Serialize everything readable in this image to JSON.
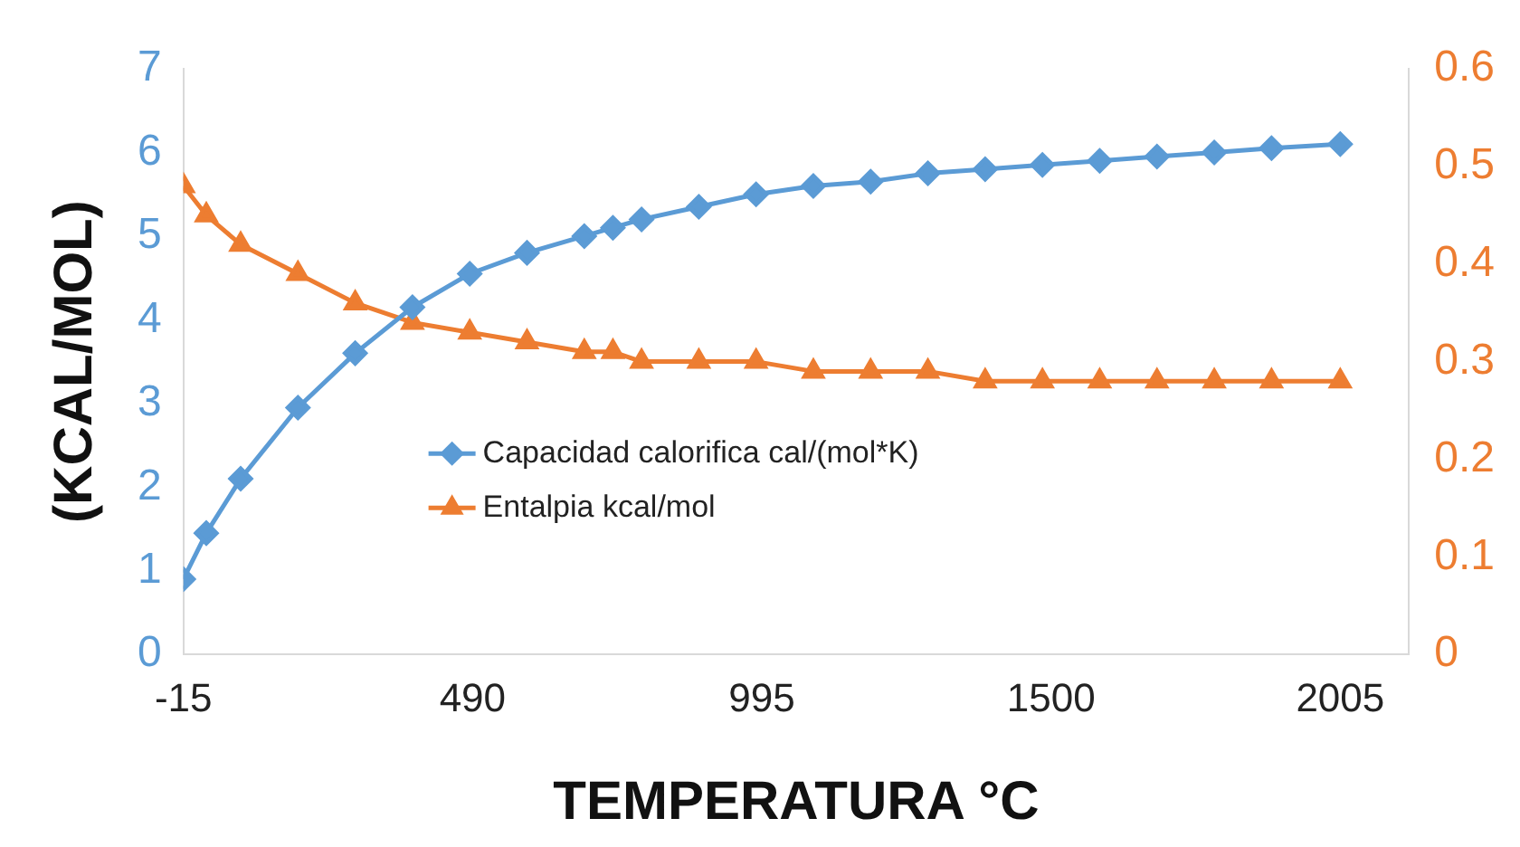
{
  "chart_data": {
    "type": "line",
    "xlabel": "TEMPERATURA °C",
    "ylabel": "(KCAL/MOL)",
    "x": [
      -15,
      25,
      85,
      185,
      285,
      385,
      485,
      585,
      685,
      735,
      785,
      885,
      985,
      1085,
      1185,
      1285,
      1385,
      1485,
      1585,
      1685,
      1785,
      1885,
      2005
    ],
    "series": [
      {
        "name": "Capacidad calorifica cal/(mol*K)",
        "color": "#5b9bd5",
        "marker": "diamond",
        "values": [
          0.9,
          1.45,
          2.1,
          2.95,
          3.6,
          4.15,
          4.55,
          4.8,
          5.0,
          5.1,
          5.2,
          5.35,
          5.5,
          5.6,
          5.65,
          5.75,
          5.8,
          5.85,
          5.9,
          5.95,
          6.0,
          6.05,
          6.1
        ]
      },
      {
        "name": "Entalpia kcal/mol",
        "color": "#ed7d31",
        "marker": "triangle",
        "axis": "y2",
        "values": [
          0.48,
          0.45,
          0.42,
          0.39,
          0.36,
          0.34,
          0.33,
          0.32,
          0.31,
          0.31,
          0.3,
          0.3,
          0.3,
          0.29,
          0.29,
          0.29,
          0.28,
          0.28,
          0.28,
          0.28,
          0.28,
          0.28,
          0.28
        ]
      }
    ],
    "xlim": [
      -15,
      2125
    ],
    "xticks": [
      -15,
      490,
      995,
      1500,
      2005
    ],
    "ylim": [
      0,
      7
    ],
    "yticks": [
      0,
      1,
      2,
      3,
      4,
      5,
      6,
      7
    ],
    "y2lim": [
      0,
      0.6
    ],
    "y2ticks": [
      0,
      0.1,
      0.2,
      0.3,
      0.4,
      0.5,
      0.6
    ],
    "grid": false,
    "legend": "center",
    "line_style": "solid"
  }
}
